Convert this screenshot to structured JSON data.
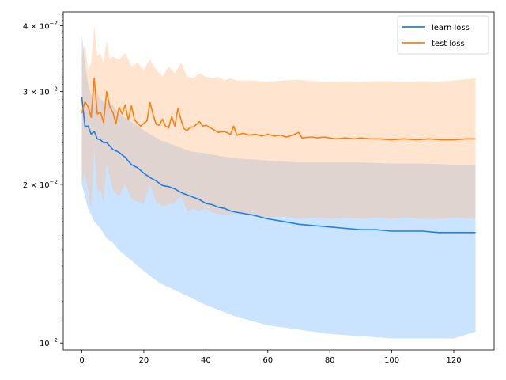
{
  "chart_data": {
    "type": "line",
    "y_scale": "log",
    "xlim": [
      -6,
      133
    ],
    "ylim": [
      0.0097,
      0.0425
    ],
    "grid": false,
    "legend_position": "top-right",
    "x_ticks": [
      {
        "value": 0,
        "label": "0"
      },
      {
        "value": 20,
        "label": "20"
      },
      {
        "value": 40,
        "label": "40"
      },
      {
        "value": 60,
        "label": "60"
      },
      {
        "value": 80,
        "label": "80"
      },
      {
        "value": 100,
        "label": "100"
      },
      {
        "value": 120,
        "label": "120"
      }
    ],
    "y_ticks": [
      {
        "value": 0.01,
        "base": "10",
        "exp": "−2",
        "mant": ""
      },
      {
        "value": 0.02,
        "base": "10",
        "exp": "−2",
        "mant": "2 × "
      },
      {
        "value": 0.03,
        "base": "10",
        "exp": "−2",
        "mant": "3 × "
      },
      {
        "value": 0.04,
        "base": "10",
        "exp": "−2",
        "mant": "4 × "
      }
    ],
    "series": [
      {
        "name": "learn loss",
        "color": "#1f7fe8",
        "band_color": "#7ab8ff",
        "line": [
          [
            0,
            0.0293
          ],
          [
            1,
            0.0258
          ],
          [
            2,
            0.0258
          ],
          [
            3,
            0.0249
          ],
          [
            4,
            0.0252
          ],
          [
            5,
            0.0244
          ],
          [
            6,
            0.0243
          ],
          [
            7,
            0.024
          ],
          [
            8,
            0.024
          ],
          [
            10,
            0.0233
          ],
          [
            12,
            0.023
          ],
          [
            14,
            0.0225
          ],
          [
            16,
            0.0218
          ],
          [
            18,
            0.0215
          ],
          [
            20,
            0.021
          ],
          [
            22,
            0.0206
          ],
          [
            24,
            0.0203
          ],
          [
            26,
            0.0199
          ],
          [
            28,
            0.0198
          ],
          [
            30,
            0.0196
          ],
          [
            32,
            0.0193
          ],
          [
            34,
            0.0191
          ],
          [
            36,
            0.0189
          ],
          [
            38,
            0.0187
          ],
          [
            40,
            0.0184
          ],
          [
            42,
            0.0183
          ],
          [
            44,
            0.0181
          ],
          [
            46,
            0.018
          ],
          [
            48,
            0.0178
          ],
          [
            50,
            0.0177
          ],
          [
            55,
            0.0175
          ],
          [
            60,
            0.0172
          ],
          [
            65,
            0.017
          ],
          [
            70,
            0.0168
          ],
          [
            75,
            0.0167
          ],
          [
            80,
            0.0166
          ],
          [
            85,
            0.0165
          ],
          [
            90,
            0.0164
          ],
          [
            95,
            0.0164
          ],
          [
            100,
            0.0163
          ],
          [
            105,
            0.0163
          ],
          [
            110,
            0.0163
          ],
          [
            115,
            0.0162
          ],
          [
            120,
            0.0162
          ],
          [
            127,
            0.0162
          ]
        ],
        "upper": [
          [
            0,
            0.0385
          ],
          [
            1,
            0.034
          ],
          [
            2,
            0.031
          ],
          [
            3,
            0.0295
          ],
          [
            4,
            0.0305
          ],
          [
            6,
            0.029
          ],
          [
            8,
            0.0285
          ],
          [
            10,
            0.0283
          ],
          [
            12,
            0.0272
          ],
          [
            15,
            0.0265
          ],
          [
            18,
            0.0258
          ],
          [
            20,
            0.0253
          ],
          [
            25,
            0.0243
          ],
          [
            30,
            0.0237
          ],
          [
            35,
            0.0231
          ],
          [
            40,
            0.0229
          ],
          [
            45,
            0.0226
          ],
          [
            50,
            0.0224
          ],
          [
            55,
            0.0223
          ],
          [
            60,
            0.0222
          ],
          [
            65,
            0.0221
          ],
          [
            70,
            0.022
          ],
          [
            75,
            0.022
          ],
          [
            80,
            0.022
          ],
          [
            90,
            0.022
          ],
          [
            100,
            0.0219
          ],
          [
            110,
            0.0219
          ],
          [
            120,
            0.0218
          ],
          [
            127,
            0.0218
          ]
        ],
        "lower": [
          [
            0,
            0.02
          ],
          [
            2,
            0.018
          ],
          [
            4,
            0.017
          ],
          [
            6,
            0.0165
          ],
          [
            8,
            0.0158
          ],
          [
            10,
            0.0155
          ],
          [
            12,
            0.015
          ],
          [
            15,
            0.0145
          ],
          [
            18,
            0.014
          ],
          [
            20,
            0.0137
          ],
          [
            25,
            0.013
          ],
          [
            30,
            0.0126
          ],
          [
            35,
            0.0122
          ],
          [
            40,
            0.0118
          ],
          [
            45,
            0.0115
          ],
          [
            50,
            0.0112
          ],
          [
            55,
            0.011
          ],
          [
            60,
            0.0108
          ],
          [
            65,
            0.0107
          ],
          [
            70,
            0.0106
          ],
          [
            75,
            0.0105
          ],
          [
            80,
            0.0104
          ],
          [
            90,
            0.0103
          ],
          [
            100,
            0.0102
          ],
          [
            110,
            0.0102
          ],
          [
            120,
            0.0102
          ],
          [
            127,
            0.0105
          ]
        ]
      },
      {
        "name": "test loss",
        "color": "#ff7f0e",
        "band_color": "#ffbe86",
        "line": [
          [
            0,
            0.0273
          ],
          [
            1,
            0.0287
          ],
          [
            2,
            0.0281
          ],
          [
            3,
            0.0268
          ],
          [
            4,
            0.0318
          ],
          [
            5,
            0.0272
          ],
          [
            6,
            0.0274
          ],
          [
            7,
            0.0262
          ],
          [
            8,
            0.03
          ],
          [
            9,
            0.0281
          ],
          [
            10,
            0.0274
          ],
          [
            11,
            0.0261
          ],
          [
            12,
            0.028
          ],
          [
            13,
            0.0272
          ],
          [
            14,
            0.0283
          ],
          [
            15,
            0.0265
          ],
          [
            16,
            0.0282
          ],
          [
            17,
            0.0265
          ],
          [
            18,
            0.0261
          ],
          [
            19,
            0.0258
          ],
          [
            20,
            0.0261
          ],
          [
            21,
            0.0264
          ],
          [
            22,
            0.0286
          ],
          [
            23,
            0.0271
          ],
          [
            24,
            0.026
          ],
          [
            25,
            0.0259
          ],
          [
            26,
            0.0266
          ],
          [
            27,
            0.0258
          ],
          [
            28,
            0.0256
          ],
          [
            29,
            0.0269
          ],
          [
            30,
            0.0258
          ],
          [
            31,
            0.0279
          ],
          [
            32,
            0.0265
          ],
          [
            33,
            0.0255
          ],
          [
            34,
            0.0253
          ],
          [
            35,
            0.0257
          ],
          [
            36,
            0.0257
          ],
          [
            37,
            0.026
          ],
          [
            38,
            0.0263
          ],
          [
            39,
            0.0258
          ],
          [
            40,
            0.0259
          ],
          [
            42,
            0.0255
          ],
          [
            44,
            0.0251
          ],
          [
            46,
            0.0252
          ],
          [
            48,
            0.0249
          ],
          [
            49,
            0.0258
          ],
          [
            50,
            0.0248
          ],
          [
            52,
            0.025
          ],
          [
            54,
            0.0248
          ],
          [
            56,
            0.0249
          ],
          [
            58,
            0.0247
          ],
          [
            60,
            0.0249
          ],
          [
            62,
            0.0247
          ],
          [
            64,
            0.0248
          ],
          [
            66,
            0.0246
          ],
          [
            68,
            0.0248
          ],
          [
            70,
            0.0251
          ],
          [
            71,
            0.0245
          ],
          [
            74,
            0.0246
          ],
          [
            76,
            0.0245
          ],
          [
            78,
            0.0246
          ],
          [
            80,
            0.0245
          ],
          [
            82,
            0.0244
          ],
          [
            85,
            0.0245
          ],
          [
            88,
            0.0244
          ],
          [
            90,
            0.0245
          ],
          [
            93,
            0.0244
          ],
          [
            96,
            0.0244
          ],
          [
            100,
            0.0243
          ],
          [
            104,
            0.0244
          ],
          [
            108,
            0.0243
          ],
          [
            112,
            0.0244
          ],
          [
            116,
            0.0243
          ],
          [
            120,
            0.0243
          ],
          [
            124,
            0.0244
          ],
          [
            127,
            0.0244
          ]
        ],
        "upper": [
          [
            0,
            0.035
          ],
          [
            1,
            0.037
          ],
          [
            2,
            0.033
          ],
          [
            3,
            0.034
          ],
          [
            4,
            0.04
          ],
          [
            5,
            0.035
          ],
          [
            6,
            0.0355
          ],
          [
            7,
            0.034
          ],
          [
            8,
            0.0375
          ],
          [
            9,
            0.0345
          ],
          [
            10,
            0.035
          ],
          [
            12,
            0.0345
          ],
          [
            14,
            0.0355
          ],
          [
            16,
            0.0335
          ],
          [
            18,
            0.034
          ],
          [
            20,
            0.033
          ],
          [
            22,
            0.0345
          ],
          [
            24,
            0.033
          ],
          [
            26,
            0.032
          ],
          [
            28,
            0.0335
          ],
          [
            30,
            0.0325
          ],
          [
            32,
            0.034
          ],
          [
            34,
            0.032
          ],
          [
            36,
            0.0318
          ],
          [
            38,
            0.0325
          ],
          [
            40,
            0.032
          ],
          [
            42,
            0.0318
          ],
          [
            44,
            0.032
          ],
          [
            46,
            0.0315
          ],
          [
            48,
            0.0318
          ],
          [
            50,
            0.0315
          ],
          [
            55,
            0.0315
          ],
          [
            60,
            0.0313
          ],
          [
            65,
            0.0315
          ],
          [
            70,
            0.0316
          ],
          [
            75,
            0.0314
          ],
          [
            80,
            0.0313
          ],
          [
            85,
            0.0314
          ],
          [
            90,
            0.0313
          ],
          [
            95,
            0.0314
          ],
          [
            100,
            0.0314
          ],
          [
            105,
            0.0313
          ],
          [
            110,
            0.0314
          ],
          [
            115,
            0.0313
          ],
          [
            120,
            0.0315
          ],
          [
            127,
            0.0318
          ]
        ],
        "lower": [
          [
            0,
            0.02
          ],
          [
            1,
            0.021
          ],
          [
            2,
            0.0195
          ],
          [
            3,
            0.018
          ],
          [
            4,
            0.0235
          ],
          [
            5,
            0.0195
          ],
          [
            6,
            0.0195
          ],
          [
            7,
            0.0185
          ],
          [
            8,
            0.022
          ],
          [
            10,
            0.0195
          ],
          [
            12,
            0.019
          ],
          [
            14,
            0.02
          ],
          [
            16,
            0.0188
          ],
          [
            18,
            0.0185
          ],
          [
            20,
            0.0184
          ],
          [
            22,
            0.02
          ],
          [
            24,
            0.0185
          ],
          [
            26,
            0.0182
          ],
          [
            28,
            0.0183
          ],
          [
            30,
            0.0185
          ],
          [
            32,
            0.019
          ],
          [
            34,
            0.0178
          ],
          [
            36,
            0.018
          ],
          [
            38,
            0.0178
          ],
          [
            40,
            0.018
          ],
          [
            42,
            0.0177
          ],
          [
            44,
            0.0176
          ],
          [
            46,
            0.0175
          ],
          [
            48,
            0.0175
          ],
          [
            50,
            0.0176
          ],
          [
            55,
            0.0174
          ],
          [
            60,
            0.0173
          ],
          [
            65,
            0.0174
          ],
          [
            70,
            0.0172
          ],
          [
            75,
            0.0173
          ],
          [
            80,
            0.0172
          ],
          [
            85,
            0.0173
          ],
          [
            90,
            0.0172
          ],
          [
            95,
            0.0173
          ],
          [
            100,
            0.0172
          ],
          [
            105,
            0.0173
          ],
          [
            110,
            0.0172
          ],
          [
            115,
            0.0172
          ],
          [
            120,
            0.0173
          ],
          [
            127,
            0.0172
          ]
        ]
      }
    ]
  }
}
